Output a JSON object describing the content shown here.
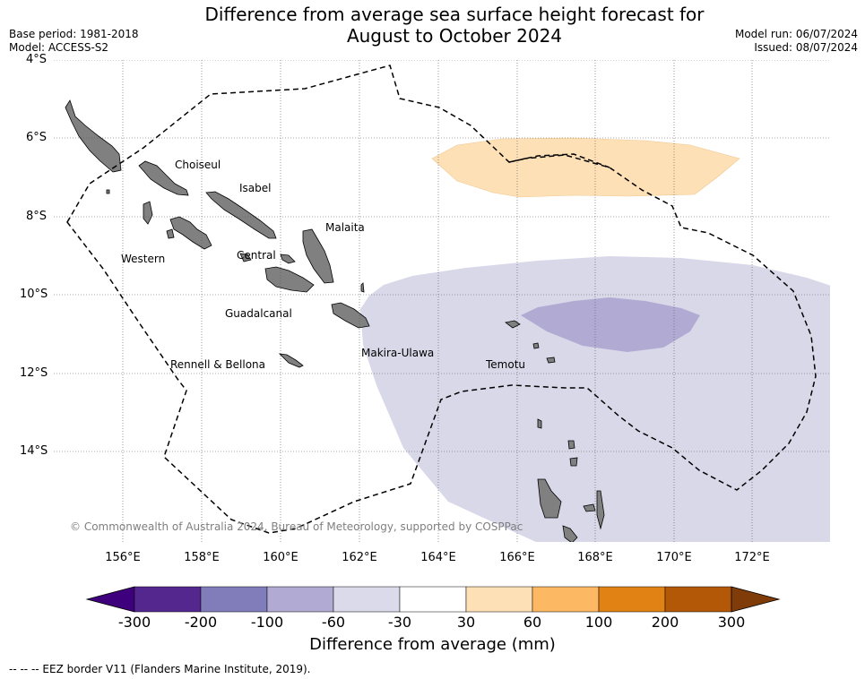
{
  "title_line1": "Difference from average sea surface height forecast for",
  "title_line2": "August to October 2024",
  "base_period": "Base period: 1981-2018",
  "model": "Model: ACCESS-S2",
  "model_run": "Model run: 06/07/2024",
  "issued": "Issued: 08/07/2024",
  "lat_labels": [
    "4°S",
    "6°S",
    "8°S",
    "10°S",
    "12°S",
    "14°S"
  ],
  "lon_labels": [
    "156°E",
    "158°E",
    "160°E",
    "162°E",
    "164°E",
    "166°E",
    "168°E",
    "170°E",
    "172°E"
  ],
  "regions": {
    "choiseul": "Choiseul",
    "isabel": "Isabel",
    "malaita": "Malaita",
    "western": "Western",
    "central": "Central",
    "guadalcanal": "Guadalcanal",
    "rennell": "Rennell & Bellona",
    "makira": "Makira-Ulawa",
    "temotu": "Temotu"
  },
  "copyright": "© Commonwealth of Australia 2024, Bureau of Meteorology, supported by COSPPac",
  "colorbar": {
    "title": "Difference from average (mm)",
    "ticks": [
      "-300",
      "-200",
      "-100",
      "-60",
      "-30",
      "30",
      "60",
      "100",
      "200",
      "300"
    ],
    "colors": [
      "#3f007d",
      "#54278f",
      "#807dba",
      "#b1abd3",
      "#dadaeb",
      "#ffffff",
      "#fee0b6",
      "#fdb863",
      "#e08214",
      "#b35806",
      "#7f3b08"
    ]
  },
  "footer": "--  --  -- EEZ border V11 (Flanders Marine Institute, 2019)."
}
